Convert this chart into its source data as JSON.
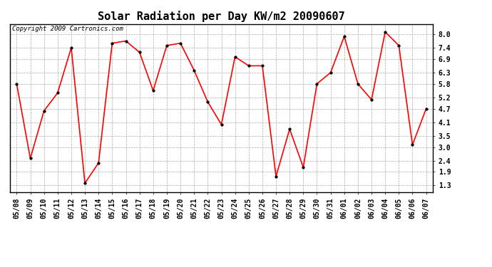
{
  "title": "Solar Radiation per Day KW/m2 20090607",
  "copyright_text": "Copyright 2009 Cartronics.com",
  "dates": [
    "05/08",
    "05/09",
    "05/10",
    "05/11",
    "05/12",
    "05/13",
    "05/14",
    "05/15",
    "05/16",
    "05/17",
    "05/18",
    "05/19",
    "05/20",
    "05/21",
    "05/22",
    "05/23",
    "05/24",
    "05/25",
    "05/26",
    "05/27",
    "05/28",
    "05/29",
    "05/30",
    "05/31",
    "06/01",
    "06/02",
    "06/03",
    "06/04",
    "06/05",
    "06/06",
    "06/07"
  ],
  "values": [
    5.8,
    2.5,
    4.6,
    5.4,
    7.4,
    1.4,
    2.3,
    7.6,
    7.7,
    7.2,
    5.5,
    7.5,
    7.6,
    6.4,
    5.0,
    4.0,
    7.0,
    6.6,
    6.6,
    1.7,
    3.8,
    2.1,
    5.8,
    6.3,
    7.9,
    5.8,
    5.1,
    8.1,
    7.5,
    3.1,
    4.7
  ],
  "yticks": [
    1.3,
    1.9,
    2.4,
    3.0,
    3.5,
    4.1,
    4.7,
    5.2,
    5.8,
    6.3,
    6.9,
    7.4,
    8.0
  ],
  "line_color": "#FF0000",
  "marker": "o",
  "marker_size": 2.5,
  "bg_color": "#FFFFFF",
  "grid_color": "#AAAAAA",
  "title_fontsize": 11,
  "copyright_fontsize": 6.5,
  "tick_fontsize": 7
}
